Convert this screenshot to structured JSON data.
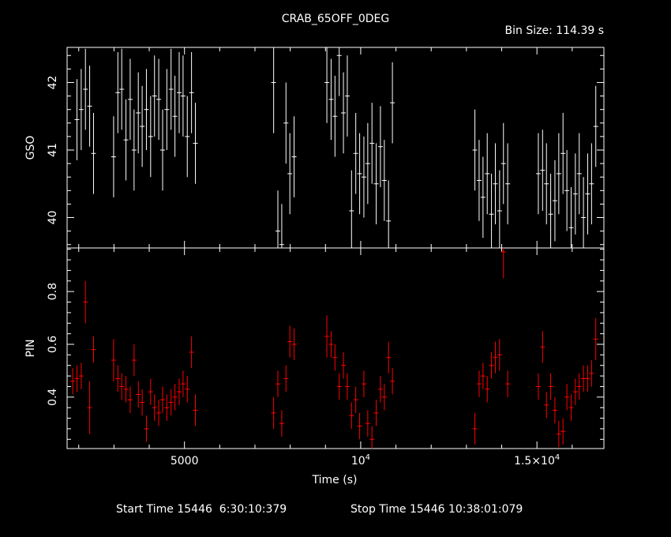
{
  "title": "CRAB_65OFF_0DEG",
  "bin_size_label": "Bin Size: 114.39 s",
  "footer": {
    "start": "Start Time 15446  6:30:10:379",
    "stop": "Stop Time 15446 10:38:01:079"
  },
  "colors": {
    "background": "#000000",
    "axes": "#ffffff",
    "gso": "#ffffff",
    "pin": "#ff0000"
  },
  "chart_data": [
    {
      "type": "scatter",
      "panel": "top",
      "ylabel": "GSO",
      "xlabel": "",
      "xlim": [
        1670,
        16900
      ],
      "ylim": [
        39.55,
        42.52
      ],
      "yticks": [
        40,
        41,
        42
      ],
      "series": [
        {
          "color": "#ffffff",
          "x": [
            1950,
            2070,
            2190,
            2310,
            2420,
            2990,
            3110,
            3220,
            3340,
            3460,
            3570,
            3690,
            3800,
            3920,
            4040,
            4150,
            4270,
            4380,
            4500,
            4620,
            4730,
            4850,
            4960,
            5080,
            5200,
            5310,
            7530,
            7650,
            7760,
            7880,
            7990,
            8110,
            9040,
            9160,
            9270,
            9390,
            9510,
            9620,
            9740,
            9860,
            9970,
            10090,
            10200,
            10320,
            10440,
            10560,
            10670,
            10790,
            10900,
            13240,
            13360,
            13470,
            13590,
            13710,
            13820,
            13940,
            14050,
            14170,
            15040,
            15160,
            15270,
            15390,
            15510,
            15620,
            15740,
            15850,
            15970,
            16090,
            16200,
            16320,
            16440,
            16550,
            16670
          ],
          "y": [
            41.45,
            41.6,
            41.9,
            41.65,
            40.95,
            40.9,
            41.85,
            41.9,
            41.15,
            41.75,
            41.0,
            41.55,
            41.35,
            41.6,
            41.2,
            41.8,
            41.75,
            41.0,
            41.6,
            41.9,
            41.5,
            41.85,
            41.8,
            41.2,
            41.85,
            41.1,
            42.0,
            39.8,
            39.6,
            41.4,
            40.65,
            40.9,
            42.0,
            41.75,
            41.5,
            42.4,
            41.55,
            41.8,
            40.1,
            40.95,
            40.65,
            40.6,
            40.8,
            41.1,
            40.5,
            41.05,
            40.55,
            39.95,
            41.7,
            41.0,
            40.55,
            40.3,
            40.65,
            40.05,
            40.5,
            40.1,
            40.8,
            40.5,
            40.65,
            40.7,
            40.5,
            40.05,
            40.25,
            40.65,
            40.95,
            40.4,
            39.85,
            40.35,
            40.65,
            40.0,
            40.35,
            40.5,
            41.35
          ],
          "err": [
            0.6,
            0.6,
            0.6,
            0.6,
            0.6,
            0.6,
            0.6,
            0.6,
            0.6,
            0.6,
            0.6,
            0.6,
            0.6,
            0.6,
            0.6,
            0.6,
            0.6,
            0.6,
            0.6,
            0.6,
            0.6,
            0.6,
            0.6,
            0.6,
            0.6,
            0.6,
            0.75,
            0.6,
            0.6,
            0.6,
            0.6,
            0.6,
            0.6,
            0.6,
            0.6,
            0.6,
            0.6,
            0.6,
            0.6,
            0.6,
            0.6,
            0.6,
            0.6,
            0.6,
            0.6,
            0.6,
            0.6,
            0.6,
            0.6,
            0.6,
            0.6,
            0.6,
            0.6,
            0.6,
            0.6,
            0.6,
            0.6,
            0.6,
            0.6,
            0.6,
            0.6,
            0.6,
            0.6,
            0.6,
            0.6,
            0.6,
            0.6,
            0.6,
            0.6,
            0.6,
            0.6,
            0.6,
            0.6
          ]
        }
      ]
    },
    {
      "type": "scatter",
      "panel": "bottom",
      "ylabel": "PIN",
      "xlabel": "Time (s)",
      "xlim": [
        1670,
        16900
      ],
      "ylim": [
        0.205,
        0.965
      ],
      "yticks": [
        0.4,
        0.6,
        0.8
      ],
      "xticks": [
        {
          "value": 5000,
          "label": "5000"
        },
        {
          "value": 10000,
          "label": "10",
          "sup": "4"
        },
        {
          "value": 15000,
          "label": "1.5×10",
          "sup": "4"
        }
      ],
      "series": [
        {
          "color": "#ff0000",
          "x": [
            1830,
            1950,
            2070,
            2190,
            2310,
            2420,
            2990,
            3110,
            3220,
            3340,
            3460,
            3570,
            3690,
            3800,
            3920,
            4040,
            4150,
            4270,
            4380,
            4500,
            4620,
            4730,
            4850,
            4960,
            5080,
            5200,
            5310,
            7530,
            7650,
            7760,
            7880,
            7990,
            8110,
            9040,
            9160,
            9270,
            9390,
            9510,
            9620,
            9740,
            9860,
            9970,
            10090,
            10200,
            10320,
            10440,
            10560,
            10670,
            10790,
            10900,
            13240,
            13360,
            13470,
            13590,
            13710,
            13820,
            13940,
            14050,
            14170,
            15040,
            15160,
            15270,
            15390,
            15510,
            15620,
            15740,
            15850,
            15970,
            16090,
            16200,
            16320,
            16440,
            16550,
            16670
          ],
          "y": [
            0.46,
            0.47,
            0.48,
            0.76,
            0.36,
            0.58,
            0.54,
            0.47,
            0.44,
            0.43,
            0.39,
            0.54,
            0.41,
            0.38,
            0.28,
            0.42,
            0.36,
            0.34,
            0.39,
            0.36,
            0.38,
            0.4,
            0.42,
            0.45,
            0.43,
            0.57,
            0.35,
            0.34,
            0.45,
            0.3,
            0.47,
            0.61,
            0.6,
            0.63,
            0.6,
            0.55,
            0.44,
            0.52,
            0.44,
            0.33,
            0.39,
            0.29,
            0.45,
            0.3,
            0.24,
            0.34,
            0.43,
            0.4,
            0.55,
            0.46,
            0.28,
            0.45,
            0.48,
            0.43,
            0.52,
            0.55,
            0.56,
            0.95,
            0.45,
            0.44,
            0.59,
            0.37,
            0.44,
            0.35,
            0.26,
            0.27,
            0.4,
            0.36,
            0.42,
            0.44,
            0.47,
            0.47,
            0.49,
            0.62
          ],
          "err": [
            0.05,
            0.05,
            0.05,
            0.08,
            0.1,
            0.05,
            0.08,
            0.05,
            0.05,
            0.05,
            0.05,
            0.06,
            0.05,
            0.05,
            0.05,
            0.05,
            0.05,
            0.05,
            0.05,
            0.05,
            0.05,
            0.05,
            0.05,
            0.05,
            0.05,
            0.06,
            0.06,
            0.06,
            0.05,
            0.05,
            0.05,
            0.06,
            0.06,
            0.08,
            0.05,
            0.05,
            0.05,
            0.05,
            0.05,
            0.05,
            0.05,
            0.05,
            0.05,
            0.05,
            0.05,
            0.05,
            0.05,
            0.05,
            0.06,
            0.05,
            0.06,
            0.05,
            0.05,
            0.05,
            0.05,
            0.06,
            0.06,
            0.1,
            0.05,
            0.05,
            0.06,
            0.05,
            0.05,
            0.05,
            0.05,
            0.05,
            0.05,
            0.05,
            0.05,
            0.05,
            0.05,
            0.05,
            0.05,
            0.08
          ]
        }
      ]
    }
  ]
}
